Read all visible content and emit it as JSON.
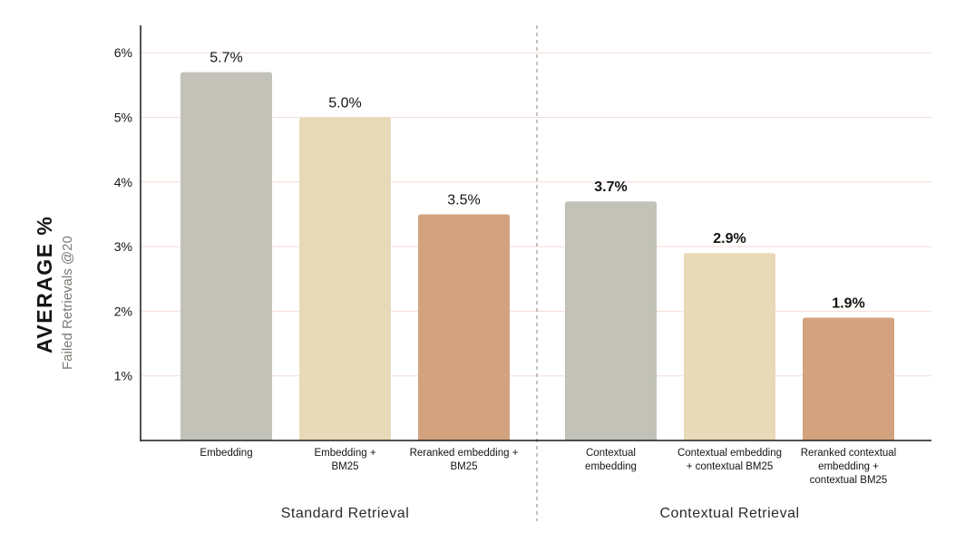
{
  "chart_data": {
    "type": "bar",
    "title": "",
    "ylabel": "AVERAGE %",
    "ylabel_sub": "Failed Retrievals @20",
    "ylim": [
      0,
      6.4
    ],
    "yticks": [
      1,
      2,
      3,
      4,
      5,
      6
    ],
    "ytick_labels": [
      "1%",
      "2%",
      "3%",
      "4%",
      "5%",
      "6%"
    ],
    "grid": true,
    "groups": [
      {
        "name": "Standard Retrieval",
        "bars": [
          {
            "label": [
              "Embedding"
            ],
            "value": 5.7,
            "value_label": "5.7%",
            "color": "#c2c2b9"
          },
          {
            "label": [
              "Embedding +",
              "BM25"
            ],
            "value": 5.0,
            "value_label": "5.0%",
            "color": "#e8dab8"
          },
          {
            "label": [
              "Reranked embedding +",
              "BM25"
            ],
            "value": 3.5,
            "value_label": "3.5%",
            "color": "#d3a37f"
          }
        ]
      },
      {
        "name": "Contextual Retrieval",
        "bars": [
          {
            "label": [
              "Contextual",
              "embedding"
            ],
            "value": 3.7,
            "value_label": "3.7%",
            "color": "#c2c2b9"
          },
          {
            "label": [
              "Contextual embedding",
              "+ contextual BM25"
            ],
            "value": 2.9,
            "value_label": "2.9%",
            "color": "#e8dab8"
          },
          {
            "label": [
              "Reranked contextual",
              "embedding +",
              "contextual BM25"
            ],
            "value": 1.9,
            "value_label": "1.9%",
            "color": "#d3a37f"
          }
        ]
      }
    ]
  },
  "colors": {
    "axis": "#1a1a1a",
    "grid": "#f3ddd6",
    "divider": "#9a9a96",
    "text": "#141413"
  }
}
